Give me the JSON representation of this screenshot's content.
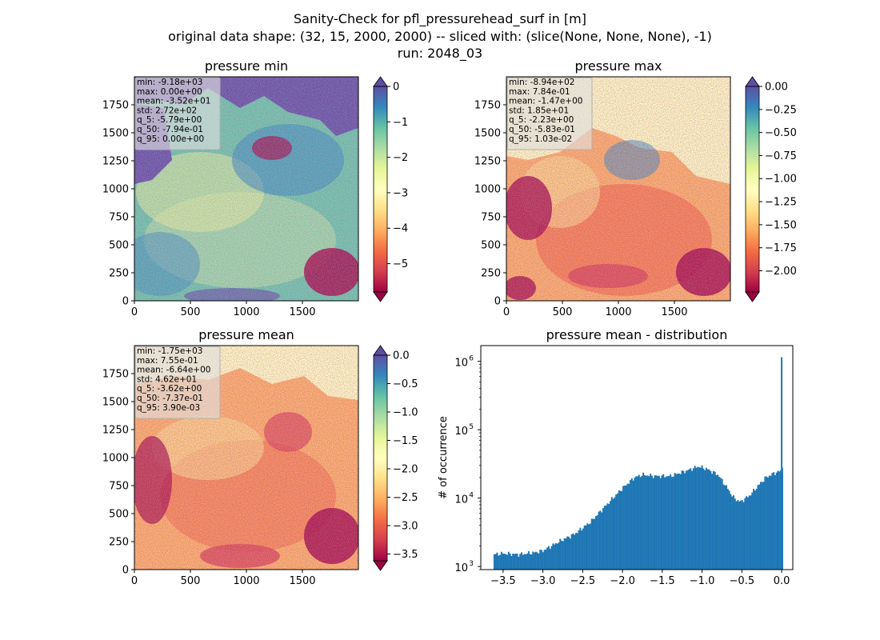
{
  "figure": {
    "title_lines": [
      "Sanity-Check for pfl_pressurehead_surf in [m]",
      "original data shape: (32, 15, 2000, 2000) -- sliced with: (slice(None, None, None), -1)",
      "run: 2048_03"
    ]
  },
  "colors": {
    "spectral": [
      "#9e0142",
      "#d53e4f",
      "#f46d43",
      "#fdae61",
      "#fee08b",
      "#ffffbf",
      "#e6f598",
      "#abdda4",
      "#66c2a5",
      "#3288bd",
      "#5e4fa2"
    ],
    "hist_bar": "#1f77b4",
    "stats_box_bg": "rgba(224,224,224,0.62)",
    "stats_box_border": "#b0b0b0"
  },
  "chart_data": [
    {
      "id": "pmin",
      "type": "heatmap",
      "title": "pressure min",
      "colormap": "Spectral",
      "xlim": [
        0,
        2000
      ],
      "ylim": [
        0,
        2000
      ],
      "xticks": [
        0,
        500,
        1000,
        1500
      ],
      "yticks": [
        0,
        250,
        500,
        750,
        1000,
        1250,
        1500,
        1750
      ],
      "colorbar": {
        "vmin": -5.8,
        "vmax": 0,
        "ticks": [
          "0",
          "−1",
          "−2",
          "−3",
          "−4",
          "−5"
        ],
        "tick_values": [
          0,
          -1,
          -2,
          -3,
          -4,
          -5
        ],
        "extend_top_color": "#5e4fa2",
        "extend_bottom_color": "#9e0142"
      },
      "stats": [
        "min: -9.18e+03",
        "max: 0.00e+00",
        "mean: -3.52e+01",
        "std: 2.72e+02",
        "q_5: -5.79e+00",
        "q_50: -7.94e-01",
        "q_95: 0.00e+00"
      ]
    },
    {
      "id": "pmax",
      "type": "heatmap",
      "title": "pressure max",
      "colormap": "Spectral",
      "xlim": [
        0,
        2000
      ],
      "ylim": [
        0,
        2000
      ],
      "xticks": [
        0,
        500,
        1000,
        1500
      ],
      "yticks": [
        0,
        250,
        500,
        750,
        1000,
        1250,
        1500,
        1750
      ],
      "colorbar": {
        "vmin": -2.23,
        "vmax": 0.0,
        "ticks": [
          "0.00",
          "−0.25",
          "−0.50",
          "−0.75",
          "−1.00",
          "−1.25",
          "−1.50",
          "−1.75",
          "−2.00"
        ],
        "tick_values": [
          0,
          -0.25,
          -0.5,
          -0.75,
          -1.0,
          -1.25,
          -1.5,
          -1.75,
          -2.0
        ],
        "extend_top_color": "#5e4fa2",
        "extend_bottom_color": "#9e0142"
      },
      "stats": [
        "min: -8.94e+02",
        "max: 7.84e-01",
        "mean: -1.47e+00",
        "std: 1.85e+01",
        "q_5: -2.23e+00",
        "q_50: -5.83e-01",
        "q_95: 1.03e-02"
      ]
    },
    {
      "id": "pmean",
      "type": "heatmap",
      "title": "pressure mean",
      "colormap": "Spectral",
      "xlim": [
        0,
        2000
      ],
      "ylim": [
        0,
        2000
      ],
      "xticks": [
        0,
        500,
        1000,
        1500
      ],
      "yticks": [
        0,
        250,
        500,
        750,
        1000,
        1250,
        1500,
        1750
      ],
      "colorbar": {
        "vmin": -3.62,
        "vmax": 0.0,
        "ticks": [
          "0.0",
          "−0.5",
          "−1.0",
          "−1.5",
          "−2.0",
          "−2.5",
          "−3.0",
          "−3.5"
        ],
        "tick_values": [
          0,
          -0.5,
          -1.0,
          -1.5,
          -2.0,
          -2.5,
          -3.0,
          -3.5
        ],
        "extend_top_color": "#5e4fa2",
        "extend_bottom_color": "#9e0142"
      },
      "stats": [
        "min: -1.75e+03",
        "max: 7.55e-01",
        "mean: -6.64e+00",
        "std: 4.62e+01",
        "q_5: -3.62e+00",
        "q_50: -7.37e-01",
        "q_95: 3.90e-03"
      ]
    },
    {
      "id": "hist",
      "type": "bar",
      "title": "pressure mean - distribution",
      "ylabel": "# of occurrence",
      "yscale": "log",
      "xlim": [
        -3.78,
        0.14
      ],
      "ylim": [
        900,
        1700000
      ],
      "xticks": [
        -3.5,
        -3.0,
        -2.5,
        -2.0,
        -1.5,
        -1.0,
        -0.5,
        0.0
      ],
      "xtick_labels": [
        "−3.5",
        "−3.0",
        "−2.5",
        "−2.0",
        "−1.5",
        "−1.0",
        "−0.5",
        "0.0"
      ],
      "yticks": [
        1000,
        10000,
        100000,
        1000000
      ],
      "ytick_labels": [
        "10",
        "10",
        "10",
        "10"
      ],
      "ytick_exponents": [
        "3",
        "4",
        "5",
        "6"
      ],
      "bin_width": 0.018,
      "anchors": [
        [
          -3.62,
          1500
        ],
        [
          -3.5,
          1550
        ],
        [
          -3.3,
          1500
        ],
        [
          -3.1,
          1600
        ],
        [
          -3.0,
          1700
        ],
        [
          -2.8,
          2300
        ],
        [
          -2.6,
          3000
        ],
        [
          -2.4,
          4500
        ],
        [
          -2.2,
          8000
        ],
        [
          -2.0,
          14000
        ],
        [
          -1.85,
          20000
        ],
        [
          -1.75,
          22000
        ],
        [
          -1.6,
          21000
        ],
        [
          -1.4,
          21000
        ],
        [
          -1.2,
          25000
        ],
        [
          -1.05,
          29000
        ],
        [
          -0.95,
          27000
        ],
        [
          -0.8,
          22000
        ],
        [
          -0.7,
          15000
        ],
        [
          -0.6,
          10000
        ],
        [
          -0.52,
          8800
        ],
        [
          -0.4,
          11000
        ],
        [
          -0.3,
          15000
        ],
        [
          -0.2,
          20000
        ],
        [
          -0.1,
          23000
        ],
        [
          -0.01,
          25000
        ]
      ],
      "spike": {
        "x": 0.0,
        "value": 1150000
      },
      "after_spike": [
        [
          0.006,
          28000
        ]
      ]
    }
  ]
}
